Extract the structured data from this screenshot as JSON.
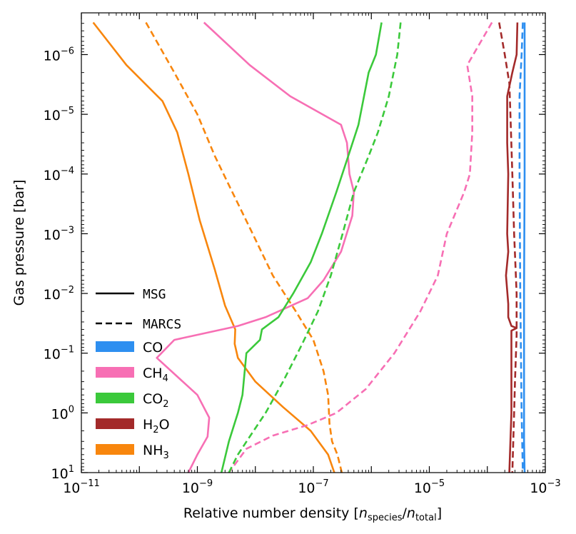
{
  "chart_data": {
    "type": "line",
    "title": "",
    "xlabel": "Relative number density",
    "xlabel_math": {
      "open": "[",
      "n1": "n",
      "sub1": "species",
      "slash": "/",
      "n2": "n",
      "sub2": "total",
      "close": "]"
    },
    "ylabel": "Gas pressure [bar]",
    "xscale": "log",
    "yscale": "log",
    "y_inverted": true,
    "xlim": [
      1e-11,
      0.001
    ],
    "ylim": [
      2e-07,
      10
    ],
    "x_ticks": [
      {
        "value": 1e-11,
        "base": "10",
        "exp": "−11"
      },
      {
        "value": 1e-09,
        "base": "10",
        "exp": "−9"
      },
      {
        "value": 1e-07,
        "base": "10",
        "exp": "−7"
      },
      {
        "value": 1e-05,
        "base": "10",
        "exp": "−5"
      },
      {
        "value": 0.001,
        "base": "10",
        "exp": "−3"
      }
    ],
    "y_ticks": [
      {
        "value": 1e-06,
        "base": "10",
        "exp": "−6"
      },
      {
        "value": 1e-05,
        "base": "10",
        "exp": "−5"
      },
      {
        "value": 0.0001,
        "base": "10",
        "exp": "−4"
      },
      {
        "value": 0.001,
        "base": "10",
        "exp": "−3"
      },
      {
        "value": 0.01,
        "base": "10",
        "exp": "−2"
      },
      {
        "value": 0.1,
        "base": "10",
        "exp": "−1"
      },
      {
        "value": 1,
        "base": "10",
        "exp": "0"
      },
      {
        "value": 10,
        "base": "10",
        "exp": "1"
      }
    ],
    "legend": {
      "placement": "lower-left",
      "styles": [
        {
          "label": "MSG",
          "dash": "solid"
        },
        {
          "label": "MARCS",
          "dash": "dashed"
        }
      ],
      "species": [
        {
          "key": "CO",
          "base": "CO",
          "sub": ""
        },
        {
          "key": "CH4",
          "base": "CH",
          "sub": "4"
        },
        {
          "key": "CO2",
          "base": "CO",
          "sub": "2"
        },
        {
          "key": "H2O",
          "base": "H",
          "sub": "2",
          "tail": "O"
        },
        {
          "key": "NH3",
          "base": "NH",
          "sub": "3"
        }
      ]
    },
    "colors": {
      "CO": "#2e8ff0",
      "CH4": "#f76fb4",
      "CO2": "#3bc93b",
      "H2O": "#a32a2a",
      "NH3": "#f8860d"
    },
    "series": [
      {
        "name": "NH3",
        "model": "MSG",
        "points": [
          [
            1.6e-11,
            2.9e-07
          ],
          [
            6e-11,
            1.5e-06
          ],
          [
            2.5e-10,
            6e-06
          ],
          [
            4.5e-10,
            2e-05
          ],
          [
            7e-10,
            0.0001
          ],
          [
            1.1e-09,
            0.0006
          ],
          [
            2e-09,
            0.004
          ],
          [
            3e-09,
            0.016
          ],
          [
            4.5e-09,
            0.04
          ],
          [
            4.4e-09,
            0.07
          ],
          [
            5e-09,
            0.12
          ],
          [
            1e-08,
            0.3
          ],
          [
            3e-08,
            0.8
          ],
          [
            9e-08,
            2
          ],
          [
            1.8e-07,
            5
          ],
          [
            2.3e-07,
            10
          ]
        ]
      },
      {
        "name": "NH3",
        "model": "MARCS",
        "points": [
          [
            1.3e-10,
            2.9e-07
          ],
          [
            4e-10,
            2e-06
          ],
          [
            1e-09,
            1e-05
          ],
          [
            2e-09,
            5e-05
          ],
          [
            4e-09,
            0.0002
          ],
          [
            9e-09,
            0.001
          ],
          [
            2e-08,
            0.005
          ],
          [
            5e-08,
            0.02
          ],
          [
            1e-07,
            0.06
          ],
          [
            1.5e-07,
            0.2
          ],
          [
            1.8e-07,
            0.5
          ],
          [
            1.9e-07,
            1.5
          ],
          [
            2.1e-07,
            3
          ],
          [
            2.6e-07,
            5
          ],
          [
            3.1e-07,
            10
          ]
        ]
      },
      {
        "name": "CH4",
        "model": "MSG",
        "points": [
          [
            1.3e-09,
            2.9e-07
          ],
          [
            8e-09,
            1.5e-06
          ],
          [
            4e-08,
            5e-06
          ],
          [
            3e-07,
            1.5e-05
          ],
          [
            3.8e-07,
            3e-05
          ],
          [
            4.2e-07,
            0.0001
          ],
          [
            5e-07,
            0.0002
          ],
          [
            4.7e-07,
            0.0005
          ],
          [
            3e-07,
            0.002
          ],
          [
            1.5e-07,
            0.006
          ],
          [
            8e-08,
            0.012
          ],
          [
            1.5e-08,
            0.025
          ],
          [
            5e-09,
            0.035
          ],
          [
            4e-10,
            0.06
          ],
          [
            2e-10,
            0.12
          ],
          [
            1e-09,
            0.5
          ],
          [
            1.6e-09,
            1.2
          ],
          [
            1.5e-09,
            2.5
          ],
          [
            1e-09,
            5
          ],
          [
            7e-10,
            10
          ]
        ]
      },
      {
        "name": "CH4",
        "model": "MARCS",
        "points": [
          [
            0.00012,
            2.9e-07
          ],
          [
            4.5e-05,
            1.5e-06
          ],
          [
            5.5e-05,
            5e-06
          ],
          [
            5.5e-05,
            2e-05
          ],
          [
            5e-05,
            0.0001
          ],
          [
            4e-05,
            0.0002
          ],
          [
            2e-05,
            0.001
          ],
          [
            1.4e-05,
            0.005
          ],
          [
            7e-06,
            0.02
          ],
          [
            2.5e-06,
            0.1
          ],
          [
            8e-07,
            0.4
          ],
          [
            2.5e-07,
            1
          ],
          [
            8e-08,
            1.6
          ],
          [
            2e-08,
            2.4
          ],
          [
            7e-09,
            4
          ],
          [
            3.5e-09,
            10
          ]
        ]
      },
      {
        "name": "CO2",
        "model": "MSG",
        "points": [
          [
            1.5e-06,
            2.9e-07
          ],
          [
            1.2e-06,
            1e-06
          ],
          [
            9e-07,
            2e-06
          ],
          [
            6e-07,
            1.5e-05
          ],
          [
            4e-07,
            5e-05
          ],
          [
            2.5e-07,
            0.0002
          ],
          [
            1.4e-07,
            0.001
          ],
          [
            9e-08,
            0.003
          ],
          [
            4.5e-08,
            0.01
          ],
          [
            2.5e-08,
            0.025
          ],
          [
            1.3e-08,
            0.04
          ],
          [
            1.2e-08,
            0.06
          ],
          [
            7e-09,
            0.1
          ],
          [
            6e-09,
            0.5
          ],
          [
            5e-09,
            1
          ],
          [
            3.5e-09,
            3
          ],
          [
            2.6e-09,
            10
          ]
        ]
      },
      {
        "name": "CO2",
        "model": "MARCS",
        "points": [
          [
            3.2e-06,
            2.9e-07
          ],
          [
            2.8e-06,
            1e-06
          ],
          [
            2e-06,
            5e-06
          ],
          [
            1.3e-06,
            2e-05
          ],
          [
            9e-07,
            5e-05
          ],
          [
            5e-07,
            0.0002
          ],
          [
            3.2e-07,
            0.001
          ],
          [
            2e-07,
            0.005
          ],
          [
            1.2e-07,
            0.02
          ],
          [
            6e-08,
            0.08
          ],
          [
            3e-08,
            0.3
          ],
          [
            1.5e-08,
            1
          ],
          [
            8e-09,
            2.5
          ],
          [
            5e-09,
            5
          ],
          [
            3.5e-09,
            10
          ]
        ]
      },
      {
        "name": "H2O",
        "model": "MSG",
        "points": [
          [
            0.00033,
            2.9e-07
          ],
          [
            0.00032,
            1e-06
          ],
          [
            0.00027,
            2e-06
          ],
          [
            0.00022,
            5e-06
          ],
          [
            0.00022,
            3e-05
          ],
          [
            0.00023,
            0.0001
          ],
          [
            0.00022,
            0.001
          ],
          [
            0.00023,
            0.002
          ],
          [
            0.00021,
            0.005
          ],
          [
            0.00023,
            0.015
          ],
          [
            0.00023,
            0.025
          ],
          [
            0.00026,
            0.035
          ],
          [
            0.00032,
            0.038
          ],
          [
            0.00026,
            0.042
          ],
          [
            0.00026,
            0.2
          ],
          [
            0.00026,
            1
          ],
          [
            0.00025,
            3
          ],
          [
            0.00024,
            10
          ]
        ]
      },
      {
        "name": "H2O",
        "model": "MARCS",
        "points": [
          [
            0.00016,
            2.9e-07
          ],
          [
            0.0002,
            1e-06
          ],
          [
            0.00024,
            3e-06
          ],
          [
            0.00025,
            1e-05
          ],
          [
            0.00027,
            0.0001
          ],
          [
            0.00029,
            0.001
          ],
          [
            0.00032,
            0.01
          ],
          [
            0.00032,
            0.05
          ],
          [
            0.0003,
            0.3
          ],
          [
            0.00029,
            1
          ],
          [
            0.00028,
            3
          ],
          [
            0.00027,
            10
          ]
        ]
      },
      {
        "name": "CO",
        "model": "MSG",
        "points": [
          [
            0.00044,
            2.9e-07
          ],
          [
            0.00044,
            0.0001
          ],
          [
            0.00043,
            0.01
          ],
          [
            0.00043,
            1
          ],
          [
            0.00043,
            3
          ],
          [
            0.00044,
            10
          ]
        ]
      },
      {
        "name": "CO",
        "model": "MARCS",
        "points": [
          [
            0.00041,
            2.9e-07
          ],
          [
            0.00039,
            1e-06
          ],
          [
            0.00036,
            5e-06
          ],
          [
            0.00036,
            0.0001
          ],
          [
            0.00037,
            0.01
          ],
          [
            0.00039,
            1
          ],
          [
            0.00041,
            10
          ]
        ]
      }
    ]
  }
}
